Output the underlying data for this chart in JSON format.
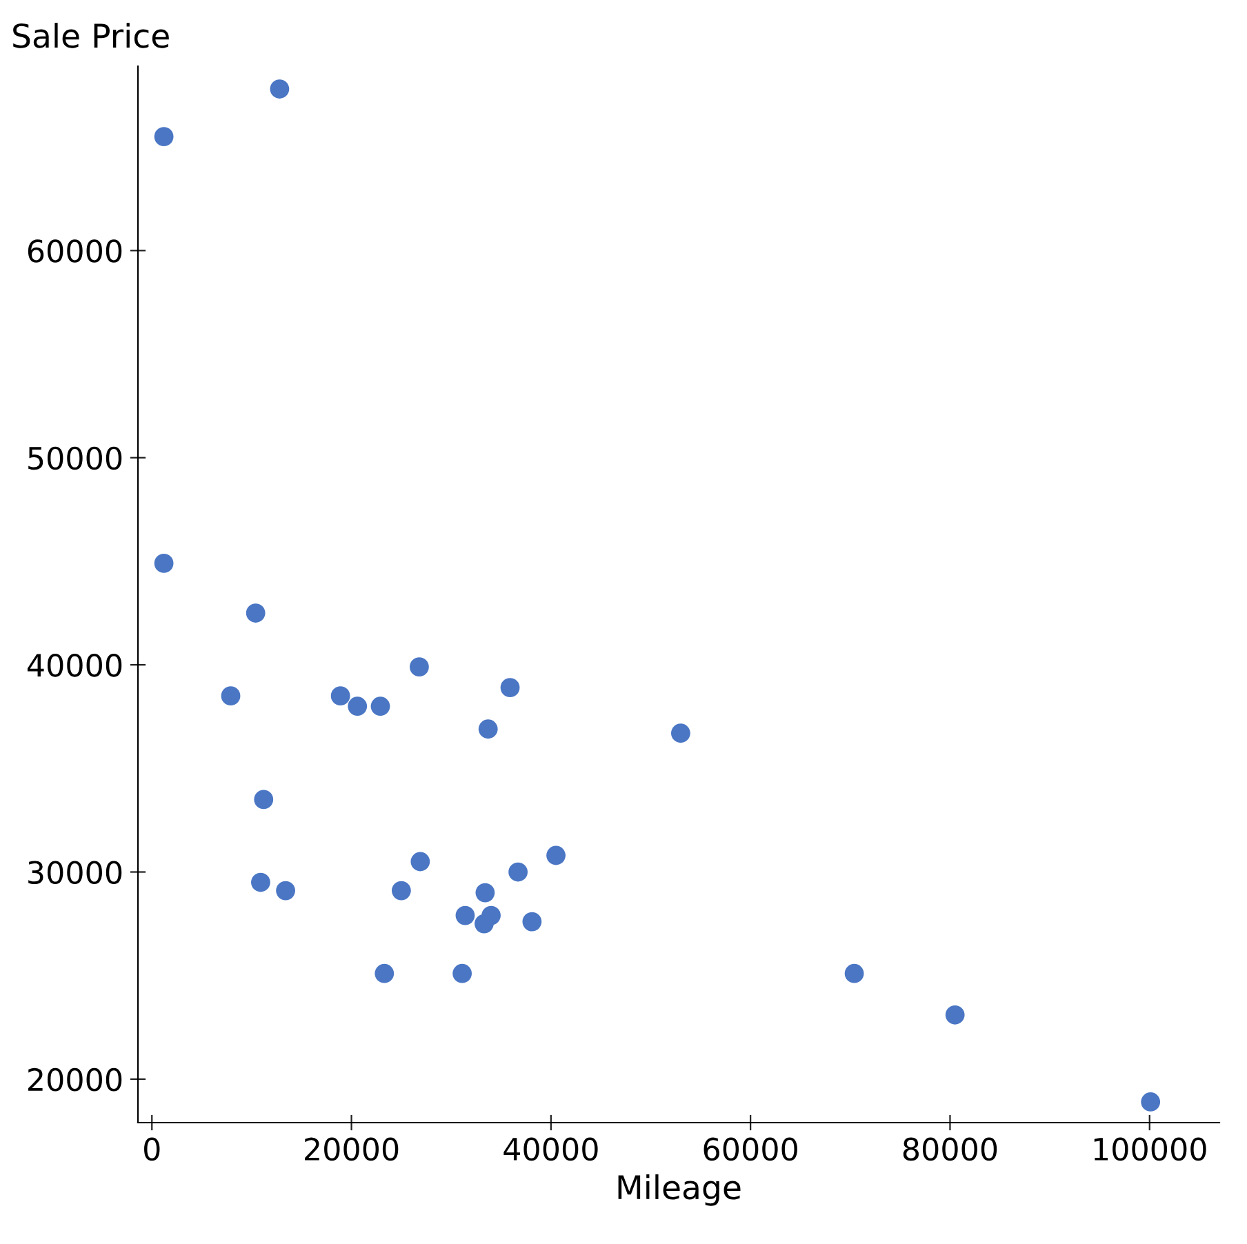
{
  "chart_data": {
    "type": "scatter",
    "xlabel": "Mileage",
    "ylabel": "Sale Price",
    "x": [
      1200,
      12800,
      1200,
      10400,
      7900,
      18900,
      20600,
      22900,
      26800,
      35900,
      33700,
      53000,
      11200,
      10900,
      13400,
      25000,
      26900,
      23300,
      31100,
      33400,
      36700,
      40500,
      31400,
      34000,
      33300,
      38100,
      70400,
      80500,
      100100
    ],
    "series": [
      {
        "color": "#4a76c4",
        "values": [
          65500,
          67800,
          44900,
          42500,
          38500,
          38500,
          38000,
          38000,
          39900,
          38900,
          36900,
          36700,
          33500,
          29500,
          29100,
          29100,
          30500,
          25100,
          25100,
          29000,
          30000,
          30800,
          27900,
          27900,
          27500,
          27600,
          25100,
          23100,
          18900
        ]
      }
    ],
    "xlim": [
      -1400,
      107000
    ],
    "ylim": [
      17900,
      68900
    ],
    "xticks": [
      0,
      20000,
      40000,
      60000,
      80000,
      100000
    ],
    "yticks": [
      20000,
      30000,
      40000,
      50000,
      60000
    ],
    "marker": "circle",
    "grid": false,
    "legend": false
  }
}
